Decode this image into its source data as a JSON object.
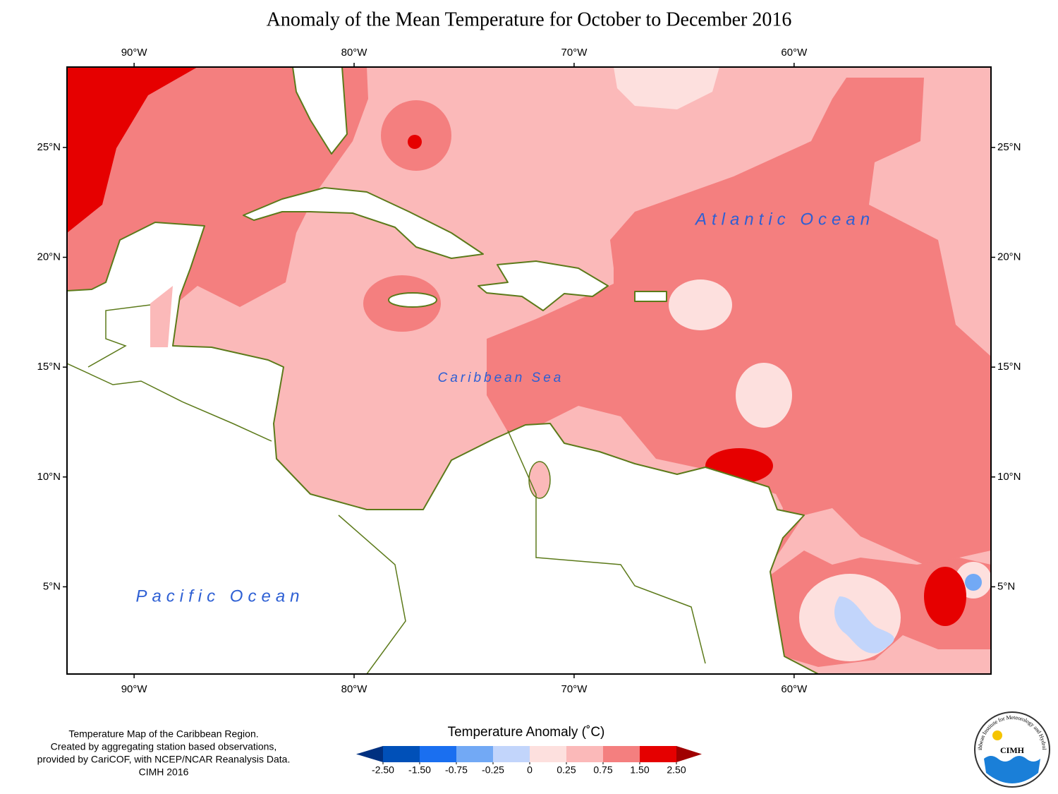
{
  "title": "Anomaly of the Mean Temperature for October to December 2016",
  "map": {
    "xlim": [
      -93.05,
      -51.05
    ],
    "ylim": [
      1.03,
      28.66
    ],
    "xticks": [
      {
        "value": -90,
        "label": "90°W"
      },
      {
        "value": -80,
        "label": "80°W"
      },
      {
        "value": -70,
        "label": "70°W"
      },
      {
        "value": -60,
        "label": "60°W"
      }
    ],
    "yticks": [
      {
        "value": 5,
        "label": "5°N"
      },
      {
        "value": 10,
        "label": "10°N"
      },
      {
        "value": 15,
        "label": "15°N"
      },
      {
        "value": 20,
        "label": "20°N"
      },
      {
        "value": 25,
        "label": "25°N"
      }
    ]
  },
  "labels": {
    "atlantic": "Atlantic Ocean",
    "caribbean": "Caribbean Sea",
    "pacific": "Pacific Ocean"
  },
  "legend": {
    "title": "Temperature Anomaly (˚C)",
    "ticks": [
      {
        "value": -2.5,
        "label": "-2.50"
      },
      {
        "value": -1.5,
        "label": "-1.50"
      },
      -0.75,
      -0.25,
      0,
      0.25,
      0.75,
      {
        "value": 1.5,
        "label": "1.50"
      },
      {
        "value": 2.5,
        "label": "2.50"
      }
    ],
    "colors": [
      "#0050b8",
      "#1a6ff0",
      "#72a9f5",
      "#c2d5fb",
      "#fde0de",
      "#fbb9b9",
      "#f47f7f",
      "#e50000"
    ],
    "extend_colors": [
      "#003080",
      "#a00000"
    ]
  },
  "credits": [
    "Temperature Map of the Caribbean Region.",
    "Created by aggregating station based observations,",
    "provided by CariCOF, with NCEP/NCAR Reanalysis Data.",
    "CIMH 2016"
  ],
  "logo": {
    "name": "CIMH",
    "ring": "Caribbean Institute for Meteorology and Hydrology"
  }
}
